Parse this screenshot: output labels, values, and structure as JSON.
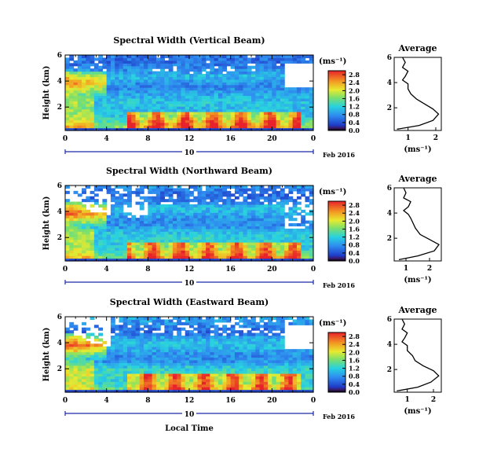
{
  "common": {
    "date_label": "Feb 2016",
    "day_label": "10",
    "xlabel": "Local Time",
    "ylabel": "Height (km)",
    "colorbar_unit": "(ms⁻¹)",
    "profile_xlabel": "(ms⁻¹)",
    "profile_title": "Average"
  },
  "chart_data": [
    {
      "type": "heatmap",
      "title": "Spectral Width (Vertical Beam)",
      "xlabel": "",
      "ylabel": "Height (km)",
      "xlim": [
        0,
        24
      ],
      "ylim": [
        0.2,
        6
      ],
      "xticks": [
        "0",
        "4",
        "8",
        "12",
        "16",
        "20",
        "0"
      ],
      "yticks": [
        "2",
        "4",
        "6"
      ],
      "colorbar": {
        "unit": "(ms⁻¹)",
        "ticks": [
          "0.0",
          "0.4",
          "0.8",
          "1.2",
          "1.6",
          "2.0",
          "2.4",
          "2.8"
        ],
        "range": [
          0,
          3.0
        ]
      },
      "profile": {
        "title": "Average",
        "xlabel": "(ms⁻¹)",
        "xlim": [
          0.5,
          2.2
        ],
        "ylim": [
          0.2,
          6
        ],
        "xticks": [
          "1",
          "2"
        ],
        "yticks": [
          "2",
          "4",
          "6"
        ],
        "points": [
          [
            0.6,
            0.3
          ],
          [
            1.4,
            0.6
          ],
          [
            1.9,
            1.0
          ],
          [
            2.1,
            1.5
          ],
          [
            1.9,
            1.9
          ],
          [
            1.6,
            2.3
          ],
          [
            1.3,
            2.7
          ],
          [
            1.1,
            3.1
          ],
          [
            1.0,
            3.5
          ],
          [
            1.0,
            3.9
          ],
          [
            0.8,
            4.2
          ],
          [
            0.9,
            4.5
          ],
          [
            1.0,
            4.9
          ],
          [
            0.8,
            5.2
          ],
          [
            0.9,
            5.6
          ],
          [
            0.8,
            6.0
          ]
        ]
      }
    },
    {
      "type": "heatmap",
      "title": "Spectral Width (Northward Beam)",
      "xlabel": "",
      "ylabel": "Height (km)",
      "xlim": [
        0,
        24
      ],
      "ylim": [
        0.2,
        6
      ],
      "xticks": [
        "0",
        "4",
        "8",
        "12",
        "16",
        "20",
        "0"
      ],
      "yticks": [
        "2",
        "4",
        "6"
      ],
      "colorbar": {
        "unit": "(ms⁻¹)",
        "ticks": [
          "0.0",
          "0.4",
          "0.8",
          "1.2",
          "1.6",
          "2.0",
          "2.4",
          "2.8"
        ],
        "range": [
          0,
          3.0
        ]
      },
      "profile": {
        "title": "Average",
        "xlabel": "(ms⁻¹)",
        "xlim": [
          0.5,
          2.5
        ],
        "ylim": [
          0.2,
          6
        ],
        "xticks": [
          "1",
          "2"
        ],
        "yticks": [
          "2",
          "4",
          "6"
        ],
        "points": [
          [
            0.7,
            0.3
          ],
          [
            1.5,
            0.6
          ],
          [
            2.2,
            1.0
          ],
          [
            2.4,
            1.5
          ],
          [
            2.0,
            1.9
          ],
          [
            1.6,
            2.3
          ],
          [
            1.4,
            2.8
          ],
          [
            1.3,
            3.2
          ],
          [
            1.2,
            3.6
          ],
          [
            1.1,
            3.9
          ],
          [
            0.9,
            4.2
          ],
          [
            1.1,
            4.5
          ],
          [
            1.2,
            4.9
          ],
          [
            0.9,
            5.2
          ],
          [
            1.0,
            5.6
          ],
          [
            0.9,
            6.0
          ]
        ]
      }
    },
    {
      "type": "heatmap",
      "title": "Spectral Width (Eastward Beam)",
      "xlabel": "Local Time",
      "ylabel": "Height (km)",
      "xlim": [
        0,
        24
      ],
      "ylim": [
        0.2,
        6
      ],
      "xticks": [
        "0",
        "4",
        "8",
        "12",
        "16",
        "20",
        "0"
      ],
      "yticks": [
        "2",
        "4",
        "6"
      ],
      "colorbar": {
        "unit": "(ms⁻¹)",
        "ticks": [
          "0.0",
          "0.4",
          "0.8",
          "1.2",
          "1.6",
          "2.0",
          "2.4",
          "2.8"
        ],
        "range": [
          0,
          3.0
        ]
      },
      "profile": {
        "title": "Average",
        "xlabel": "(ms⁻¹)",
        "xlim": [
          0.5,
          2.3
        ],
        "ylim": [
          0.2,
          6
        ],
        "xticks": [
          "1",
          "2"
        ],
        "yticks": [
          "2",
          "4",
          "6"
        ],
        "points": [
          [
            0.6,
            0.3
          ],
          [
            1.4,
            0.6
          ],
          [
            1.9,
            1.0
          ],
          [
            2.2,
            1.5
          ],
          [
            2.0,
            1.9
          ],
          [
            1.6,
            2.3
          ],
          [
            1.3,
            2.7
          ],
          [
            1.2,
            3.1
          ],
          [
            1.0,
            3.5
          ],
          [
            1.0,
            3.9
          ],
          [
            0.8,
            4.2
          ],
          [
            0.9,
            4.5
          ],
          [
            1.0,
            4.9
          ],
          [
            0.8,
            5.2
          ],
          [
            0.9,
            5.6
          ],
          [
            0.8,
            6.0
          ]
        ]
      }
    }
  ]
}
